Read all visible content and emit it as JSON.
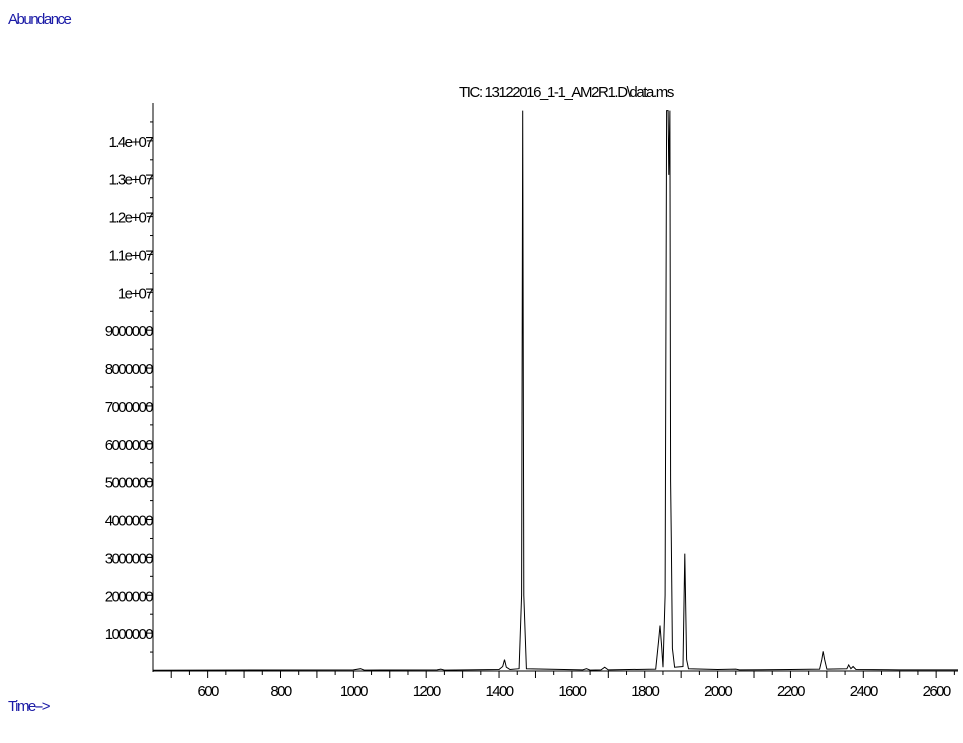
{
  "chart_data": {
    "type": "line",
    "title": "TIC: 13122016_1-1_AM2R1.D\\data.ms",
    "ylabel": "Abundance",
    "xlabel": "Time-->",
    "xlim": [
      450,
      2660
    ],
    "ylim": [
      0,
      15000000
    ],
    "x_ticks": [
      600,
      800,
      1000,
      1200,
      1400,
      1600,
      1800,
      2000,
      2200,
      2400,
      2600
    ],
    "y_ticks": [
      1000000,
      2000000,
      3000000,
      4000000,
      5000000,
      6000000,
      7000000,
      8000000,
      9000000,
      10000000,
      11000000,
      12000000,
      13000000,
      14000000
    ],
    "y_tick_labels": [
      "1000000",
      "2000000",
      "3000000",
      "4000000",
      "5000000",
      "6000000",
      "7000000",
      "8000000",
      "9000000",
      "1e+07",
      "1.1e+07",
      "1.2e+07",
      "1.3e+07",
      "1.4e+07"
    ],
    "grid": false,
    "series": [
      {
        "points": [
          [
            450,
            20000
          ],
          [
            1000,
            30000
          ],
          [
            1020,
            60000
          ],
          [
            1030,
            25000
          ],
          [
            1230,
            30000
          ],
          [
            1240,
            50000
          ],
          [
            1250,
            25000
          ],
          [
            1400,
            40000
          ],
          [
            1410,
            120000
          ],
          [
            1415,
            300000
          ],
          [
            1420,
            100000
          ],
          [
            1430,
            40000
          ],
          [
            1455,
            60000
          ],
          [
            1462,
            2000000
          ],
          [
            1465,
            14800000
          ],
          [
            1468,
            2000000
          ],
          [
            1475,
            60000
          ],
          [
            1630,
            30000
          ],
          [
            1640,
            60000
          ],
          [
            1650,
            25000
          ],
          [
            1680,
            30000
          ],
          [
            1690,
            100000
          ],
          [
            1700,
            30000
          ],
          [
            1830,
            50000
          ],
          [
            1838,
            800000
          ],
          [
            1842,
            1200000
          ],
          [
            1846,
            700000
          ],
          [
            1850,
            100000
          ],
          [
            1856,
            2000000
          ],
          [
            1860,
            14800000
          ],
          [
            1864,
            14800000
          ],
          [
            1866,
            13100000
          ],
          [
            1869,
            14800000
          ],
          [
            1871,
            5000000
          ],
          [
            1873,
            3500000
          ],
          [
            1876,
            600000
          ],
          [
            1882,
            100000
          ],
          [
            1905,
            120000
          ],
          [
            1910,
            3100000
          ],
          [
            1915,
            300000
          ],
          [
            1920,
            60000
          ],
          [
            2000,
            40000
          ],
          [
            2050,
            50000
          ],
          [
            2060,
            30000
          ],
          [
            2200,
            40000
          ],
          [
            2280,
            50000
          ],
          [
            2286,
            300000
          ],
          [
            2290,
            520000
          ],
          [
            2294,
            300000
          ],
          [
            2300,
            50000
          ],
          [
            2355,
            60000
          ],
          [
            2360,
            160000
          ],
          [
            2366,
            60000
          ],
          [
            2372,
            120000
          ],
          [
            2380,
            40000
          ],
          [
            2500,
            30000
          ],
          [
            2660,
            30000
          ]
        ]
      }
    ]
  }
}
